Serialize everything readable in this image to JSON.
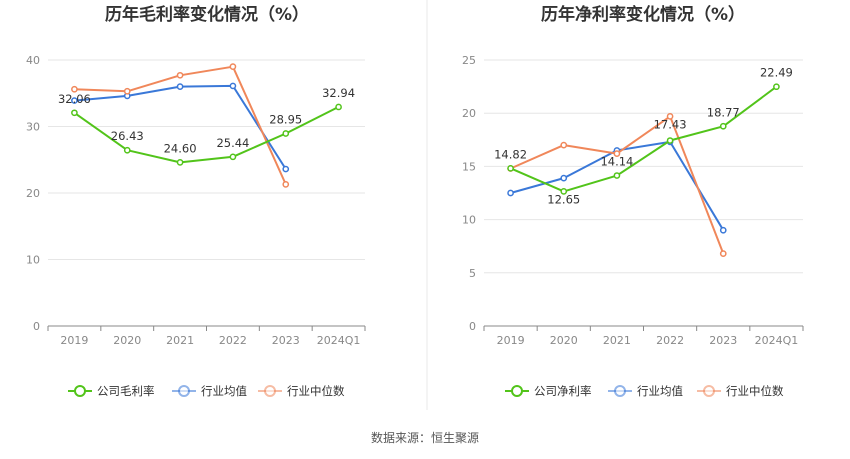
{
  "chart_data": [
    {
      "type": "line",
      "title": "历年毛利率变化情况（%）",
      "categories": [
        "2019",
        "2020",
        "2021",
        "2022",
        "2023",
        "2024Q1"
      ],
      "ylim": [
        0,
        40
      ],
      "yticks": [
        "0",
        "10",
        "20",
        "30",
        "40"
      ],
      "grid": true,
      "legend_position": "bottom",
      "series": [
        {
          "name": "公司毛利率",
          "color": "#52c41a",
          "values": [
            32.06,
            26.43,
            24.6,
            25.44,
            28.95,
            32.94
          ],
          "labels": [
            "32.06",
            "26.43",
            "24.60",
            "25.44",
            "28.95",
            "32.94"
          ]
        },
        {
          "name": "行业均值",
          "color": "#3a78d8",
          "values": [
            33.9,
            34.6,
            36.0,
            36.1,
            23.6,
            null
          ]
        },
        {
          "name": "行业中位数",
          "color": "#f0875a",
          "values": [
            35.6,
            35.3,
            37.7,
            39.0,
            21.3,
            null
          ]
        }
      ]
    },
    {
      "type": "line",
      "title": "历年净利率变化情况（%）",
      "categories": [
        "2019",
        "2020",
        "2021",
        "2022",
        "2023",
        "2024Q1"
      ],
      "ylim": [
        0,
        25
      ],
      "yticks": [
        "0",
        "5",
        "10",
        "15",
        "20",
        "25"
      ],
      "grid": true,
      "legend_position": "bottom",
      "series": [
        {
          "name": "公司净利率",
          "color": "#52c41a",
          "values": [
            14.82,
            12.65,
            14.14,
            17.43,
            18.77,
            22.49
          ],
          "labels": [
            "14.82",
            "12.65",
            "14.14",
            "17.43",
            "18.77",
            "22.49"
          ]
        },
        {
          "name": "行业均值",
          "color": "#3a78d8",
          "values": [
            12.5,
            13.9,
            16.5,
            17.3,
            9.0,
            null
          ]
        },
        {
          "name": "行业中位数",
          "color": "#f0875a",
          "values": [
            14.8,
            17.0,
            16.2,
            19.7,
            6.8,
            null
          ]
        }
      ]
    }
  ],
  "footer": {
    "source": "数据来源：恒生聚源"
  }
}
